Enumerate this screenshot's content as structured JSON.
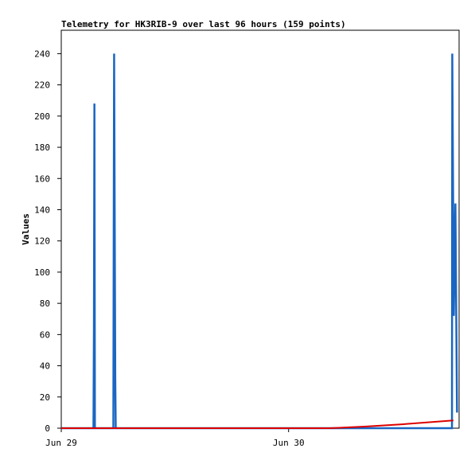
{
  "chart_data": {
    "type": "line",
    "title": "Telemetry for HK3RIB-9 over last 96 hours (159 points)",
    "y_label": "Values",
    "xlim": [
      0,
      42
    ],
    "ylim": [
      0,
      255
    ],
    "xticks": [
      {
        "value": 0,
        "label": "Jun 29"
      },
      {
        "value": 24,
        "label": "Jun 30"
      }
    ],
    "yticks": [
      0,
      20,
      40,
      60,
      80,
      100,
      120,
      140,
      160,
      180,
      200,
      220,
      240
    ],
    "series": [
      {
        "color": "#1a66c2",
        "x": [
          0,
          3.4,
          3.45,
          3.5,
          3.55,
          5.5,
          5.54,
          5.58,
          5.7,
          5.75,
          41.25,
          41.28,
          41.44,
          41.61,
          41.78
        ],
        "values": [
          0,
          0,
          64,
          208,
          0,
          0,
          128,
          240,
          32,
          0,
          0,
          240,
          72,
          144,
          10
        ]
      },
      {
        "color": "#dd0000",
        "x": [
          0,
          28.4,
          32,
          36,
          41.4
        ],
        "values": [
          0,
          0,
          1,
          2.5,
          5
        ]
      }
    ]
  }
}
